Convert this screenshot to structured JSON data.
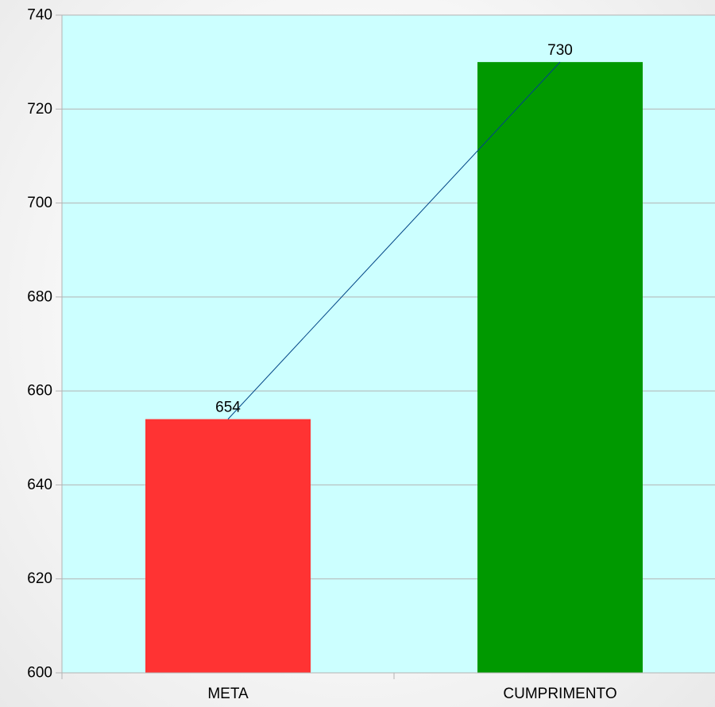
{
  "chart_data": {
    "type": "bar",
    "categories": [
      "META",
      "CUMPRIMENTO"
    ],
    "values": [
      654,
      730
    ],
    "data_labels": [
      "654",
      "730"
    ],
    "ylim": [
      600,
      740
    ],
    "yticks": [
      600,
      620,
      640,
      660,
      680,
      700,
      720,
      740
    ],
    "ytick_labels": [
      "600",
      "620",
      "640",
      "660",
      "680",
      "700",
      "720",
      "740"
    ],
    "title": "",
    "xlabel": "",
    "ylabel": "",
    "grid": true,
    "legend": "none",
    "overlay_line": true,
    "colors": {
      "plot_background": "#ccffff",
      "bars": [
        "#ff3333",
        "#009900"
      ],
      "gridline": "#b3b3b3",
      "axis": "#b3b3b3",
      "overlay_line": "#004586"
    }
  }
}
